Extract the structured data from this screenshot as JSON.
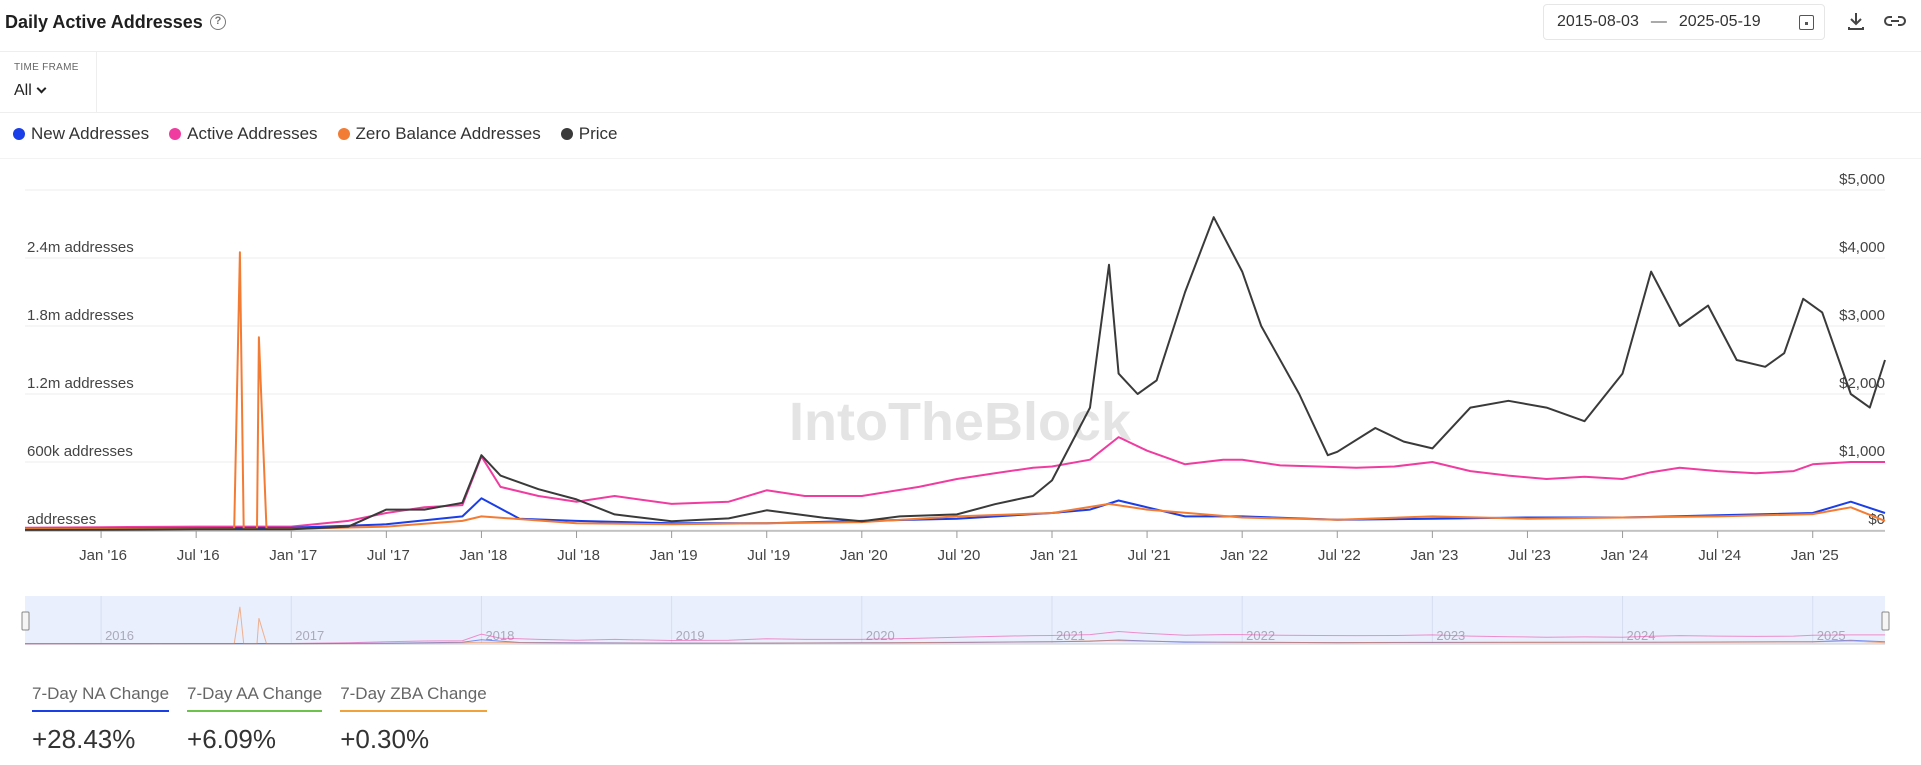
{
  "header": {
    "title": "Daily Active Addresses",
    "help_icon": "question-circle-icon",
    "date_start": "2015-08-03",
    "date_sep": "—",
    "date_end": "2025-05-19"
  },
  "timeframe": {
    "label": "TIME FRAME",
    "value": "All"
  },
  "legend": [
    {
      "name": "New Addresses",
      "color": "#1a3ee8"
    },
    {
      "name": "Active Addresses",
      "color": "#f03ca0"
    },
    {
      "name": "Zero Balance Addresses",
      "color": "#f37c34"
    },
    {
      "name": "Price",
      "color": "#3a3a3a"
    }
  ],
  "stats": [
    {
      "label": "7-Day NA Change",
      "value": "+28.43%",
      "color": "#1a3ee8"
    },
    {
      "label": "7-Day AA Change",
      "value": "+6.09%",
      "color": "#6cc24a"
    },
    {
      "label": "7-Day ZBA Change",
      "value": "+0.30%",
      "color": "#f2a23a"
    }
  ],
  "watermark": "IntoTheBlock",
  "chart_data": {
    "type": "line",
    "x_start": "2015-08-03",
    "x_end": "2025-05-19",
    "x_ticks": [
      "Jan '16",
      "Jul '16",
      "Jan '17",
      "Jul '17",
      "Jan '18",
      "Jul '18",
      "Jan '19",
      "Jul '19",
      "Jan '20",
      "Jul '20",
      "Jan '21",
      "Jul '21",
      "Jan '22",
      "Jul '22",
      "Jan '23",
      "Jul '23",
      "Jan '24",
      "Jul '24",
      "Jan '25"
    ],
    "y_left": {
      "ticks": [
        "addresses",
        "600k addresses",
        "1.2m addresses",
        "1.8m addresses",
        "2.4m addresses"
      ],
      "values": [
        0,
        600000,
        1200000,
        1800000,
        2400000
      ],
      "max": 3000000
    },
    "y_right": {
      "ticks": [
        "$0",
        "$1,000",
        "$2,000",
        "$3,000",
        "$4,000",
        "$5,000"
      ],
      "values": [
        0,
        1000,
        2000,
        3000,
        4000,
        5000
      ],
      "max": 5000
    },
    "navigator_years": [
      "2016",
      "2017",
      "2018",
      "2019",
      "2020",
      "2021",
      "2022",
      "2023",
      "2024",
      "2025"
    ],
    "series": [
      {
        "name": "Active Addresses",
        "axis": "left",
        "color": "#f03ca0",
        "x": [
          2015.6,
          2016.0,
          2016.5,
          2017.0,
          2017.3,
          2017.5,
          2017.7,
          2017.9,
          2018.0,
          2018.1,
          2018.3,
          2018.5,
          2018.7,
          2019.0,
          2019.3,
          2019.5,
          2019.7,
          2020.0,
          2020.3,
          2020.5,
          2020.7,
          2020.9,
          2021.0,
          2021.2,
          2021.35,
          2021.5,
          2021.7,
          2021.9,
          2022.0,
          2022.2,
          2022.4,
          2022.6,
          2022.8,
          2023.0,
          2023.2,
          2023.4,
          2023.6,
          2023.8,
          2024.0,
          2024.15,
          2024.3,
          2024.5,
          2024.7,
          2024.9,
          2025.0,
          2025.2,
          2025.38
        ],
        "y": [
          20000,
          25000,
          30000,
          30000,
          80000,
          150000,
          200000,
          220000,
          650000,
          380000,
          300000,
          250000,
          300000,
          230000,
          250000,
          350000,
          300000,
          300000,
          380000,
          450000,
          500000,
          550000,
          560000,
          620000,
          820000,
          700000,
          580000,
          620000,
          620000,
          570000,
          560000,
          550000,
          560000,
          600000,
          520000,
          480000,
          450000,
          470000,
          450000,
          510000,
          550000,
          520000,
          500000,
          520000,
          580000,
          600000,
          600000
        ]
      },
      {
        "name": "New Addresses",
        "axis": "left",
        "color": "#1a3ee8",
        "x": [
          2015.6,
          2016.5,
          2017.0,
          2017.5,
          2017.9,
          2018.0,
          2018.2,
          2018.5,
          2019.0,
          2019.5,
          2020.0,
          2020.5,
          2021.0,
          2021.2,
          2021.35,
          2021.5,
          2021.7,
          2022.0,
          2022.5,
          2023.0,
          2023.5,
          2024.0,
          2024.5,
          2025.0,
          2025.2,
          2025.38
        ],
        "y": [
          10000,
          15000,
          20000,
          50000,
          120000,
          280000,
          100000,
          80000,
          60000,
          60000,
          80000,
          100000,
          150000,
          180000,
          260000,
          200000,
          120000,
          120000,
          90000,
          100000,
          110000,
          110000,
          130000,
          150000,
          250000,
          150000
        ]
      },
      {
        "name": "Zero Balance Addresses",
        "axis": "left",
        "color": "#f37c34",
        "x": [
          2015.6,
          2016.7,
          2016.73,
          2016.75,
          2016.78,
          2016.82,
          2016.83,
          2016.87,
          2016.92,
          2016.94,
          2017.0,
          2017.5,
          2017.9,
          2018.0,
          2018.5,
          2019.0,
          2019.5,
          2020.0,
          2020.5,
          2021.0,
          2021.3,
          2021.5,
          2022.0,
          2022.5,
          2023.0,
          2023.5,
          2024.0,
          2024.5,
          2025.0,
          2025.2,
          2025.38
        ],
        "y": [
          10000,
          10000,
          2450000,
          10000,
          10000,
          10000,
          1700000,
          10000,
          10000,
          10000,
          10000,
          30000,
          80000,
          120000,
          60000,
          50000,
          60000,
          70000,
          120000,
          150000,
          230000,
          180000,
          110000,
          90000,
          120000,
          100000,
          110000,
          120000,
          140000,
          200000,
          80000
        ]
      },
      {
        "name": "Price",
        "axis": "right",
        "color": "#3a3a3a",
        "x": [
          2015.6,
          2016.0,
          2016.5,
          2017.0,
          2017.3,
          2017.5,
          2017.7,
          2017.9,
          2018.0,
          2018.1,
          2018.3,
          2018.5,
          2018.7,
          2019.0,
          2019.3,
          2019.5,
          2019.8,
          2020.0,
          2020.2,
          2020.5,
          2020.7,
          2020.9,
          2021.0,
          2021.2,
          2021.3,
          2021.35,
          2021.45,
          2021.55,
          2021.7,
          2021.85,
          2022.0,
          2022.1,
          2022.3,
          2022.45,
          2022.5,
          2022.7,
          2022.85,
          2023.0,
          2023.2,
          2023.4,
          2023.6,
          2023.8,
          2024.0,
          2024.15,
          2024.3,
          2024.45,
          2024.6,
          2024.75,
          2024.85,
          2024.95,
          2025.05,
          2025.2,
          2025.3,
          2025.38
        ],
        "y": [
          1,
          5,
          10,
          10,
          50,
          300,
          300,
          400,
          1100,
          800,
          600,
          450,
          230,
          130,
          170,
          290,
          180,
          130,
          200,
          230,
          380,
          500,
          730,
          1800,
          3900,
          2300,
          2000,
          2200,
          3500,
          4600,
          3800,
          3000,
          2000,
          1100,
          1150,
          1500,
          1300,
          1200,
          1800,
          1900,
          1800,
          1600,
          2300,
          3800,
          3000,
          3300,
          2500,
          2400,
          2600,
          3400,
          3200,
          2000,
          1800,
          2500
        ]
      }
    ]
  }
}
